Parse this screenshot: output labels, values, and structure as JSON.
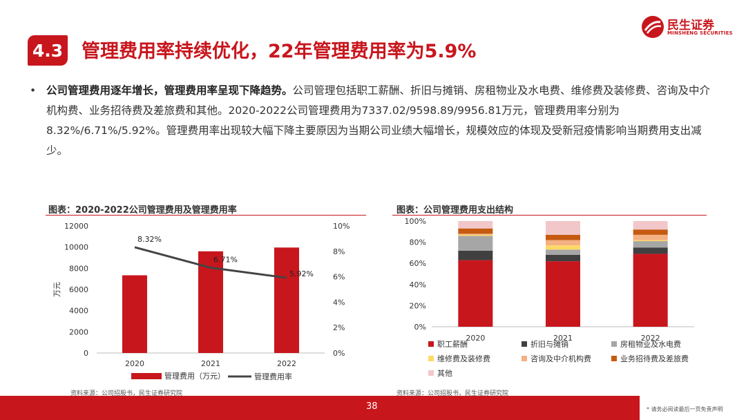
{
  "header": {
    "section_number": "4.3",
    "title": "管理费用率持续优化，22年管理费用率为5.9%",
    "logo_cn": "民生证券",
    "logo_en": "MINSHENG SECURITIES"
  },
  "bullet": {
    "dot": "•",
    "bold": "公司管理费用逐年增长，管理费用率呈现下降趋势。",
    "text": "公司管理包括职工薪酬、折旧与摊销、房租物业及水电费、维修费及装修费、咨询及中介机构费、业务招待费及差旅费和其他。2020-2022公司管理费用为7337.02/9598.89/9956.81万元，管理费用率分别为8.32%/6.71%/5.92%。管理费用率出现较大幅下降主要原因为当期公司业绩大幅增长，规模效应的体现及受新冠疫情影响当期费用支出减少。"
  },
  "chart_left": {
    "heading": "图表：2020-2022公司管理费用及管理费用率",
    "source": "资料来源：公司招股书，民生证券研究院"
  },
  "chart_right": {
    "heading": "图表：公司管理费用支出结构",
    "source": "资料来源：公司招股书，民生证券研究院"
  },
  "chart_data": [
    {
      "type": "bar",
      "categories": [
        "2020",
        "2021",
        "2022"
      ],
      "series": [
        {
          "name": "管理费用（万元）",
          "type": "bar",
          "axis": "left",
          "values": [
            7337.02,
            9598.89,
            9956.81
          ],
          "color": "#c8161d"
        },
        {
          "name": "管理费用率",
          "type": "line",
          "axis": "right",
          "values": [
            8.32,
            6.71,
            5.92
          ],
          "labels": [
            "8.32%",
            "6.71%",
            "5.92%"
          ],
          "color": "#444444"
        }
      ],
      "ylabel": "万元",
      "ylim": [
        0,
        12000
      ],
      "yticks": [
        "0",
        "2000",
        "4000",
        "6000",
        "8000",
        "10000",
        "12000"
      ],
      "y2lim": [
        0,
        10
      ],
      "y2ticks": [
        "0%",
        "2%",
        "4%",
        "6%",
        "8%",
        "10%"
      ],
      "legend_position": "bottom",
      "grid": false
    },
    {
      "type": "bar",
      "stacked": true,
      "categories": [
        "2020",
        "2021",
        "2022"
      ],
      "series": [
        {
          "name": "职工薪酬",
          "values": [
            63,
            62,
            69
          ],
          "color": "#c8161d"
        },
        {
          "name": "折旧与摊销",
          "values": [
            9,
            6,
            6
          ],
          "color": "#404040"
        },
        {
          "name": "房租物业及水电费",
          "values": [
            14,
            5,
            6
          ],
          "color": "#a6a6a6"
        },
        {
          "name": "维修费及装修费",
          "values": [
            1,
            4,
            1
          ],
          "color": "#ffd966"
        },
        {
          "name": "咨询及中介机构费",
          "values": [
            1,
            5,
            5
          ],
          "color": "#f4b183"
        },
        {
          "name": "业务招待费及差旅费",
          "values": [
            5,
            5,
            5
          ],
          "color": "#c55a11"
        },
        {
          "name": "其他",
          "values": [
            7,
            13,
            8
          ],
          "color": "#f2c7c9"
        }
      ],
      "ylim": [
        0,
        100
      ],
      "yticks": [
        "0%",
        "20%",
        "40%",
        "60%",
        "80%",
        "100%"
      ],
      "legend_position": "bottom",
      "grid": false
    }
  ],
  "footer": {
    "page_number": "38",
    "disclaimer": "* 请务必阅读最后一页免责声明"
  }
}
